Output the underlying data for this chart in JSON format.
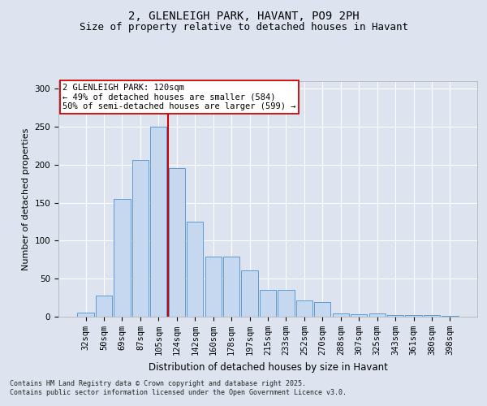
{
  "title": "2, GLENLEIGH PARK, HAVANT, PO9 2PH",
  "subtitle": "Size of property relative to detached houses in Havant",
  "xlabel": "Distribution of detached houses by size in Havant",
  "ylabel": "Number of detached properties",
  "categories": [
    "32sqm",
    "50sqm",
    "69sqm",
    "87sqm",
    "105sqm",
    "124sqm",
    "142sqm",
    "160sqm",
    "178sqm",
    "197sqm",
    "215sqm",
    "233sqm",
    "252sqm",
    "270sqm",
    "288sqm",
    "307sqm",
    "325sqm",
    "343sqm",
    "361sqm",
    "380sqm",
    "398sqm"
  ],
  "values": [
    5,
    28,
    155,
    206,
    250,
    196,
    125,
    79,
    79,
    61,
    35,
    35,
    21,
    19,
    4,
    3,
    4,
    2,
    2,
    2,
    1
  ],
  "bar_color": "#c5d8f0",
  "bar_edge_color": "#5b9bd5",
  "vline_x_index": 4.5,
  "vline_color": "#cc0000",
  "annotation_text": "2 GLENLEIGH PARK: 120sqm\n← 49% of detached houses are smaller (584)\n50% of semi-detached houses are larger (599) →",
  "annotation_box_color": "#ffffff",
  "annotation_box_edge": "#cc0000",
  "bg_color": "#dde4f0",
  "plot_bg_color": "#dde4f0",
  "footer": "Contains HM Land Registry data © Crown copyright and database right 2025.\nContains public sector information licensed under the Open Government Licence v3.0.",
  "ylim": [
    0,
    310
  ],
  "yticks": [
    0,
    50,
    100,
    150,
    200,
    250,
    300
  ],
  "title_fontsize": 10,
  "subtitle_fontsize": 9,
  "tick_fontsize": 7.5,
  "ylabel_fontsize": 8,
  "xlabel_fontsize": 8.5
}
